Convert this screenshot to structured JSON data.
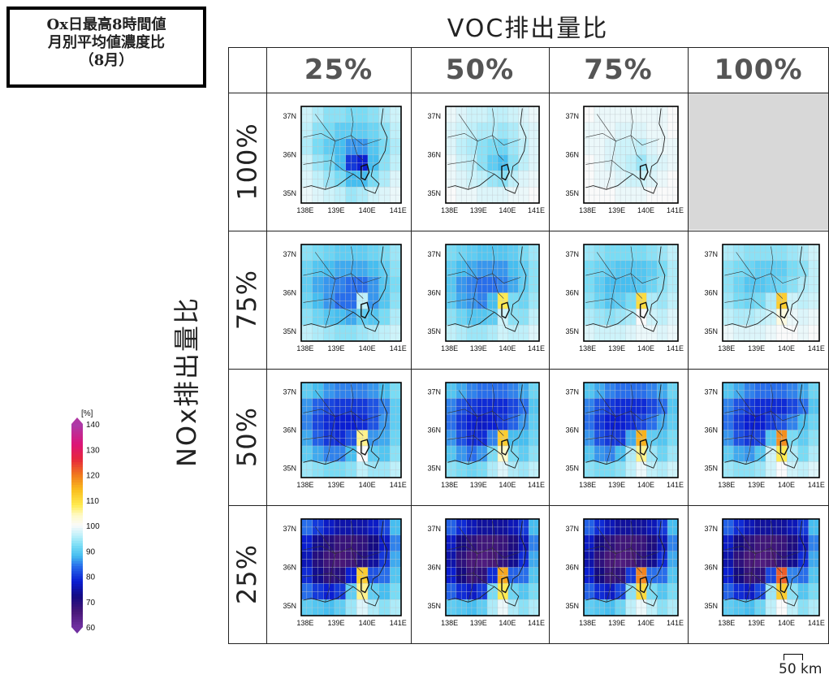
{
  "title_lines": [
    "Ox日最高8時間値",
    "月別平均値濃度比",
    "（8月）"
  ],
  "col_axis_label": "VOC排出量比",
  "row_axis_label": "NOx排出量比",
  "columns": [
    "25%",
    "50%",
    "75%",
    "100%"
  ],
  "rows": [
    "100%",
    "75%",
    "50%",
    "25%"
  ],
  "map_axes": {
    "lat_labels": [
      "37N",
      "36N",
      "35N"
    ],
    "lon_labels": [
      "138E",
      "139E",
      "140E",
      "141E"
    ]
  },
  "panels": [
    {
      "nox": "100%",
      "voc": "25%",
      "vals": [
        97,
        95,
        93,
        93,
        92,
        92,
        93,
        95,
        97,
        96,
        93,
        92,
        90,
        90,
        90,
        91,
        93,
        96,
        95,
        92,
        90,
        88,
        86,
        86,
        89,
        92,
        95,
        97,
        94,
        92,
        88,
        80,
        78,
        88,
        93,
        96,
        98,
        96,
        94,
        92,
        88,
        88,
        92,
        95,
        98,
        99,
        98,
        97,
        96,
        94,
        95,
        97,
        98,
        99
      ]
    },
    {
      "nox": "100%",
      "voc": "50%",
      "vals": [
        99,
        98,
        97,
        97,
        96,
        96,
        97,
        98,
        99,
        98,
        97,
        96,
        95,
        95,
        94,
        95,
        97,
        98,
        98,
        96,
        95,
        93,
        92,
        91,
        94,
        96,
        98,
        99,
        97,
        96,
        93,
        90,
        88,
        93,
        96,
        98,
        99,
        98,
        97,
        96,
        94,
        93,
        96,
        98,
        99,
        100,
        99,
        99,
        98,
        98,
        98,
        99,
        99,
        100
      ]
    },
    {
      "nox": "100%",
      "voc": "75%",
      "vals": [
        100,
        99,
        99,
        99,
        99,
        99,
        99,
        99,
        100,
        99,
        99,
        99,
        98,
        98,
        98,
        99,
        99,
        100,
        99,
        99,
        98,
        97,
        97,
        96,
        98,
        99,
        99,
        100,
        99,
        98,
        97,
        96,
        94,
        97,
        98,
        99,
        100,
        99,
        99,
        98,
        97,
        97,
        98,
        99,
        100,
        100,
        100,
        100,
        99,
        99,
        99,
        100,
        100,
        100
      ]
    },
    {
      "nox": "100%",
      "voc": "100%",
      "vals": []
    },
    {
      "nox": "75%",
      "voc": "25%",
      "vals": [
        93,
        92,
        91,
        90,
        90,
        90,
        91,
        92,
        94,
        91,
        89,
        88,
        87,
        87,
        87,
        88,
        90,
        93,
        90,
        87,
        86,
        85,
        84,
        84,
        86,
        89,
        92,
        91,
        88,
        86,
        84,
        84,
        96,
        86,
        89,
        93,
        93,
        91,
        89,
        88,
        87,
        90,
        89,
        92,
        95,
        96,
        95,
        94,
        93,
        93,
        94,
        95,
        96,
        97
      ]
    },
    {
      "nox": "75%",
      "voc": "50%",
      "vals": [
        92,
        91,
        90,
        89,
        89,
        89,
        90,
        92,
        94,
        90,
        88,
        87,
        86,
        86,
        86,
        88,
        90,
        93,
        89,
        86,
        85,
        84,
        84,
        85,
        87,
        90,
        93,
        90,
        87,
        86,
        85,
        88,
        108,
        92,
        91,
        94,
        93,
        91,
        89,
        89,
        90,
        97,
        93,
        93,
        96,
        96,
        95,
        94,
        94,
        95,
        97,
        96,
        96,
        98
      ]
    },
    {
      "nox": "75%",
      "voc": "75%",
      "vals": [
        94,
        93,
        92,
        92,
        92,
        92,
        93,
        94,
        96,
        92,
        91,
        90,
        89,
        89,
        89,
        90,
        92,
        95,
        92,
        90,
        88,
        88,
        88,
        89,
        91,
        93,
        95,
        93,
        91,
        89,
        90,
        92,
        110,
        95,
        94,
        96,
        95,
        94,
        93,
        94,
        95,
        100,
        97,
        96,
        98,
        98,
        97,
        97,
        97,
        98,
        99,
        99,
        98,
        99
      ]
    },
    {
      "nox": "75%",
      "voc": "100%",
      "vals": [
        95,
        94,
        93,
        93,
        93,
        93,
        94,
        95,
        97,
        93,
        92,
        91,
        90,
        90,
        90,
        92,
        93,
        96,
        93,
        91,
        89,
        89,
        90,
        91,
        93,
        95,
        96,
        94,
        92,
        91,
        92,
        95,
        112,
        97,
        96,
        97,
        96,
        95,
        95,
        96,
        97,
        102,
        99,
        98,
        99,
        99,
        98,
        98,
        98,
        99,
        100,
        100,
        99,
        100
      ]
    },
    {
      "nox": "50%",
      "voc": "25%",
      "vals": [
        90,
        88,
        86,
        85,
        85,
        85,
        86,
        88,
        92,
        86,
        83,
        81,
        80,
        80,
        80,
        82,
        85,
        90,
        85,
        81,
        79,
        78,
        78,
        79,
        82,
        86,
        90,
        87,
        83,
        80,
        79,
        82,
        106,
        86,
        87,
        91,
        90,
        87,
        85,
        85,
        88,
        100,
        90,
        89,
        93,
        94,
        93,
        92,
        92,
        93,
        96,
        94,
        94,
        96
      ]
    },
    {
      "nox": "50%",
      "voc": "50%",
      "vals": [
        89,
        87,
        85,
        84,
        84,
        84,
        85,
        87,
        91,
        85,
        82,
        80,
        79,
        79,
        79,
        81,
        84,
        89,
        84,
        80,
        78,
        77,
        78,
        80,
        83,
        86,
        90,
        86,
        82,
        79,
        79,
        85,
        112,
        88,
        88,
        91,
        89,
        86,
        84,
        86,
        92,
        104,
        92,
        90,
        93,
        93,
        92,
        91,
        92,
        95,
        98,
        95,
        94,
        96
      ]
    },
    {
      "nox": "50%",
      "voc": "75%",
      "vals": [
        89,
        87,
        85,
        84,
        84,
        84,
        85,
        87,
        91,
        85,
        82,
        80,
        79,
        79,
        79,
        81,
        84,
        89,
        84,
        80,
        78,
        78,
        79,
        81,
        84,
        87,
        90,
        86,
        82,
        80,
        80,
        87,
        115,
        90,
        89,
        92,
        89,
        86,
        85,
        88,
        95,
        106,
        94,
        91,
        94,
        93,
        92,
        92,
        93,
        96,
        99,
        96,
        95,
        97
      ]
    },
    {
      "nox": "50%",
      "voc": "100%",
      "vals": [
        89,
        87,
        85,
        84,
        84,
        84,
        85,
        87,
        91,
        85,
        82,
        80,
        79,
        79,
        79,
        81,
        84,
        89,
        84,
        80,
        78,
        78,
        80,
        82,
        85,
        88,
        91,
        86,
        82,
        80,
        81,
        89,
        118,
        92,
        90,
        93,
        90,
        87,
        86,
        89,
        97,
        108,
        95,
        92,
        95,
        94,
        93,
        93,
        94,
        97,
        100,
        97,
        96,
        98
      ]
    },
    {
      "nox": "25%",
      "voc": "25%",
      "vals": [
        84,
        80,
        77,
        75,
        75,
        75,
        77,
        81,
        88,
        78,
        73,
        70,
        68,
        68,
        69,
        72,
        77,
        85,
        76,
        70,
        67,
        66,
        67,
        70,
        74,
        80,
        87,
        79,
        73,
        69,
        70,
        78,
        112,
        82,
        84,
        89,
        84,
        80,
        78,
        80,
        90,
        106,
        90,
        88,
        92,
        90,
        89,
        88,
        90,
        94,
        98,
        95,
        93,
        95
      ]
    },
    {
      "nox": "25%",
      "voc": "50%",
      "vals": [
        83,
        79,
        76,
        74,
        74,
        74,
        76,
        80,
        88,
        77,
        72,
        69,
        67,
        67,
        68,
        71,
        76,
        85,
        75,
        69,
        66,
        65,
        66,
        69,
        73,
        79,
        87,
        78,
        72,
        68,
        69,
        79,
        116,
        83,
        84,
        89,
        83,
        79,
        77,
        80,
        92,
        108,
        91,
        89,
        92,
        90,
        89,
        88,
        90,
        95,
        99,
        95,
        93,
        95
      ]
    },
    {
      "nox": "25%",
      "voc": "75%",
      "vals": [
        83,
        79,
        76,
        74,
        74,
        74,
        76,
        80,
        88,
        77,
        72,
        69,
        67,
        67,
        68,
        71,
        76,
        85,
        75,
        69,
        66,
        65,
        66,
        69,
        73,
        79,
        87,
        78,
        72,
        68,
        69,
        80,
        119,
        84,
        84,
        89,
        83,
        79,
        77,
        81,
        93,
        110,
        92,
        89,
        92,
        90,
        89,
        88,
        91,
        96,
        99,
        96,
        93,
        95
      ]
    },
    {
      "nox": "25%",
      "voc": "100%",
      "vals": [
        83,
        79,
        76,
        74,
        74,
        74,
        76,
        80,
        88,
        77,
        72,
        69,
        67,
        67,
        68,
        71,
        76,
        85,
        75,
        69,
        66,
        65,
        66,
        69,
        73,
        79,
        87,
        78,
        72,
        68,
        69,
        81,
        122,
        85,
        84,
        89,
        83,
        79,
        77,
        81,
        94,
        112,
        93,
        89,
        92,
        90,
        89,
        88,
        91,
        96,
        100,
        96,
        93,
        95
      ]
    }
  ],
  "colorbar": {
    "unit": "[%]",
    "tick_labels": [
      "140",
      "130",
      "120",
      "110",
      "100",
      "90",
      "80",
      "70",
      "60"
    ],
    "min": 60,
    "max": 140
  },
  "scale_bar": {
    "label": "50 km"
  }
}
